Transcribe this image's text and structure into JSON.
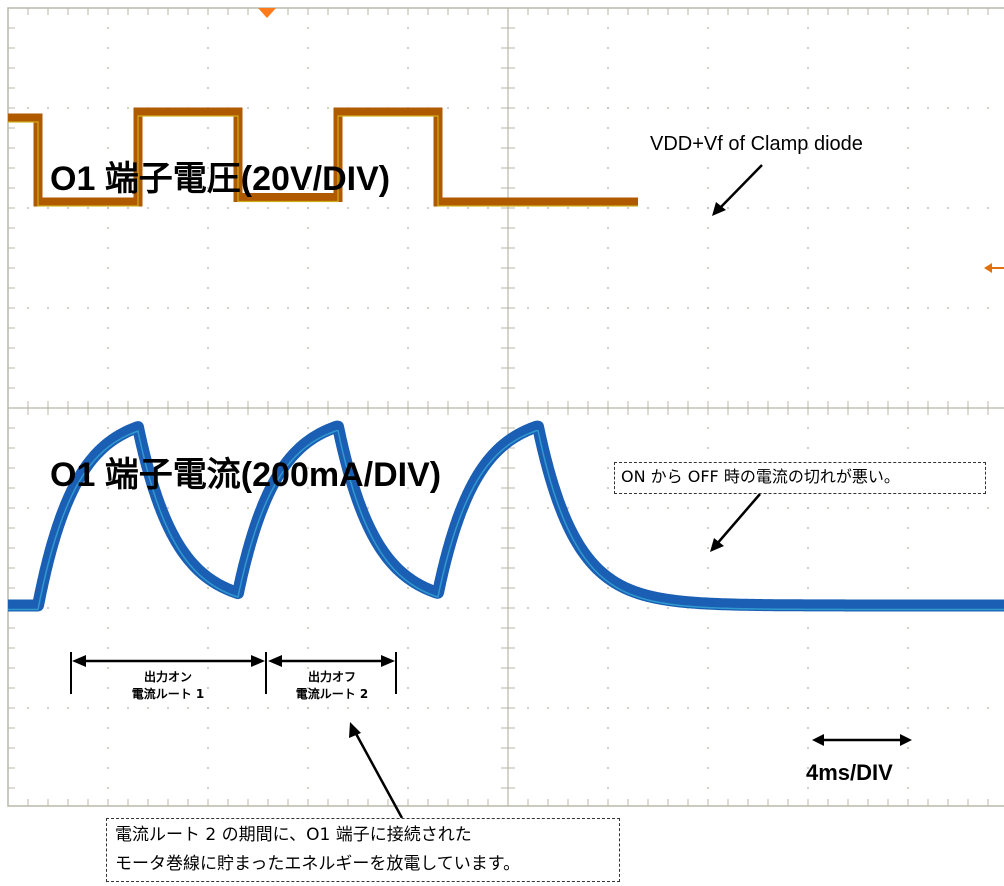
{
  "labels": {
    "voltage_title": "O1 端子電圧(20V/DIV)",
    "current_title": "O1 端子電流(200mA/DIV)",
    "clamp_annotation": "VDD+Vf of Clamp diode",
    "timebase": "4ms/DIV",
    "route_on_line1": "出力オン",
    "route_on_line2": "電流ルート 1",
    "route_off_line1": "出力オフ",
    "route_off_line2": "電流ルート 2",
    "note_right": "ON から OFF 時の電流の切れが悪い。",
    "note_bottom_line1": "電流ルート 2 の期間に、O1 端子に接続された",
    "note_bottom_line2": "モータ巻線に貯まったエネルギーを放電しています。"
  },
  "chart_data": {
    "type": "line",
    "x_unit": "ms",
    "x_div": 4,
    "xlim": [
      0,
      40
    ],
    "grid": true,
    "series": [
      {
        "name": "O1 端子電圧",
        "color": "#b05a00",
        "highlight": "#d8c020",
        "x": [
          0,
          1.2,
          1.2,
          5.2,
          5.2,
          9.2,
          9.2,
          13.2,
          13.2,
          17.2,
          17.2,
          21.2,
          21.2,
          25.2
        ],
        "y": [
          3.0,
          3.0,
          0.2,
          0.2,
          3.2,
          3.2,
          0.35,
          0.35,
          3.2,
          3.2,
          0.2,
          0.2,
          0.2,
          0.2
        ]
      },
      {
        "name": "O1 端子電流",
        "color": "#1a5fb4",
        "highlight": "#40c0e0",
        "shape": "exponential",
        "edges_ms": [
          1.2,
          5.2,
          9.2,
          13.2,
          17.2,
          21.2
        ],
        "baseline": -1.5,
        "plateau": 1.45,
        "tau_ms": 1.5
      }
    ]
  }
}
